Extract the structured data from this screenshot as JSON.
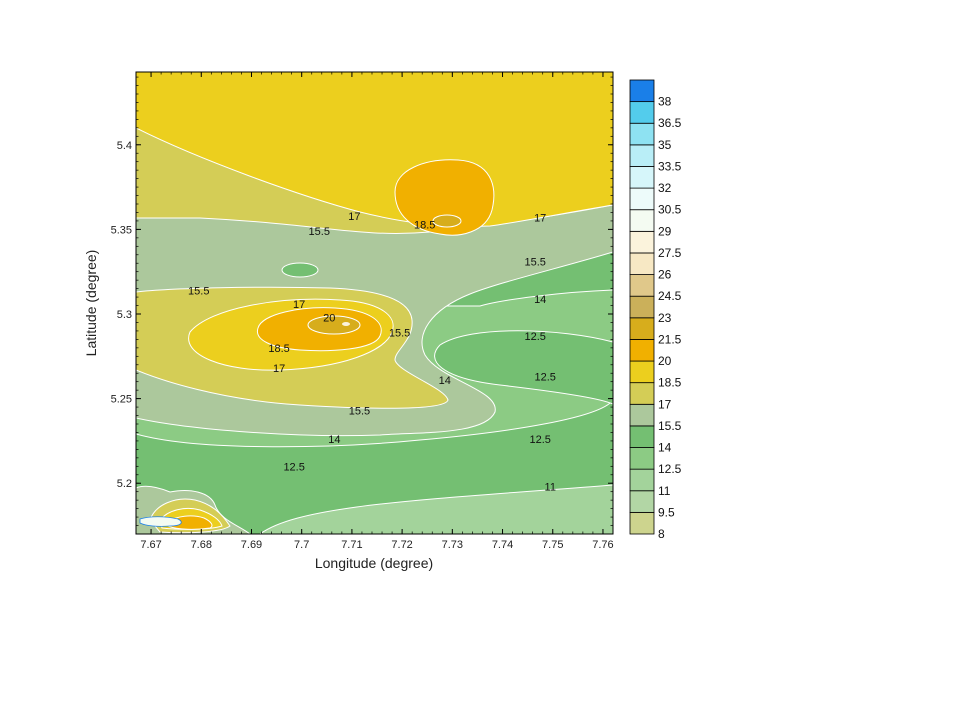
{
  "chart_data": {
    "type": "contour",
    "xlabel": "Longitude (degree)",
    "ylabel": "Latitude (degree)",
    "xlim": [
      7.667,
      7.762
    ],
    "ylim": [
      5.17,
      5.443
    ],
    "x_ticks": [
      "7.67",
      "7.68",
      "7.69",
      "7.7",
      "7.71",
      "7.72",
      "7.73",
      "7.74",
      "7.75",
      "7.76"
    ],
    "x_tick_values": [
      7.67,
      7.68,
      7.69,
      7.7,
      7.71,
      7.72,
      7.73,
      7.74,
      7.75,
      7.76
    ],
    "y_ticks": [
      "5.2",
      "5.25",
      "5.3",
      "5.35",
      "5.4"
    ],
    "y_tick_values": [
      5.2,
      5.25,
      5.3,
      5.35,
      5.4
    ],
    "levels": [
      8,
      9.5,
      11,
      12.5,
      14,
      15.5,
      17,
      18.5,
      20,
      21.5,
      23,
      24.5,
      26,
      27.5,
      29,
      30.5,
      32,
      33.5,
      35,
      36.5,
      38
    ],
    "level_labels": [
      "8",
      "9.5",
      "11",
      "12.5",
      "14",
      "15.5",
      "17",
      "18.5",
      "20",
      "21.5",
      "23",
      "24.5",
      "26",
      "27.5",
      "29",
      "30.5",
      "32",
      "33.5",
      "35",
      "36.5",
      "38"
    ],
    "colors": [
      "#cdd48e",
      "#b2d6a5",
      "#a3d39b",
      "#8ccb84",
      "#74bf72",
      "#acc89c",
      "#d4cd56",
      "#eccf1e",
      "#f1b000",
      "#d7ad1c",
      "#cbb05a",
      "#e0c88a",
      "#f7e8c4",
      "#fbf3dc",
      "#f4fbf2",
      "#edfbfa",
      "#d6f6fa",
      "#b9eef7",
      "#8ee2f2",
      "#53ccec",
      "#1a7fe8"
    ],
    "contour_labels": [
      {
        "text": "17",
        "x": 7.7105,
        "y": 5.358
      },
      {
        "text": "18.5",
        "x": 7.7245,
        "y": 5.353
      },
      {
        "text": "17",
        "x": 7.7475,
        "y": 5.357
      },
      {
        "text": "15.5",
        "x": 7.7035,
        "y": 5.349
      },
      {
        "text": "15.5",
        "x": 7.7465,
        "y": 5.331
      },
      {
        "text": "15.5",
        "x": 7.6795,
        "y": 5.314
      },
      {
        "text": "17",
        "x": 7.6995,
        "y": 5.306
      },
      {
        "text": "20",
        "x": 7.7055,
        "y": 5.298
      },
      {
        "text": "18.5",
        "x": 7.6955,
        "y": 5.28
      },
      {
        "text": "17",
        "x": 7.6955,
        "y": 5.268
      },
      {
        "text": "15.5",
        "x": 7.7195,
        "y": 5.289
      },
      {
        "text": "14",
        "x": 7.7475,
        "y": 5.309
      },
      {
        "text": "12.5",
        "x": 7.7465,
        "y": 5.287
      },
      {
        "text": "12.5",
        "x": 7.7485,
        "y": 5.263
      },
      {
        "text": "14",
        "x": 7.7285,
        "y": 5.261
      },
      {
        "text": "15.5",
        "x": 7.7115,
        "y": 5.243
      },
      {
        "text": "14",
        "x": 7.7065,
        "y": 5.226
      },
      {
        "text": "12.5",
        "x": 7.6985,
        "y": 5.21
      },
      {
        "text": "12.5",
        "x": 7.7475,
        "y": 5.226
      },
      {
        "text": "11",
        "x": 7.7495,
        "y": 5.198
      }
    ]
  }
}
